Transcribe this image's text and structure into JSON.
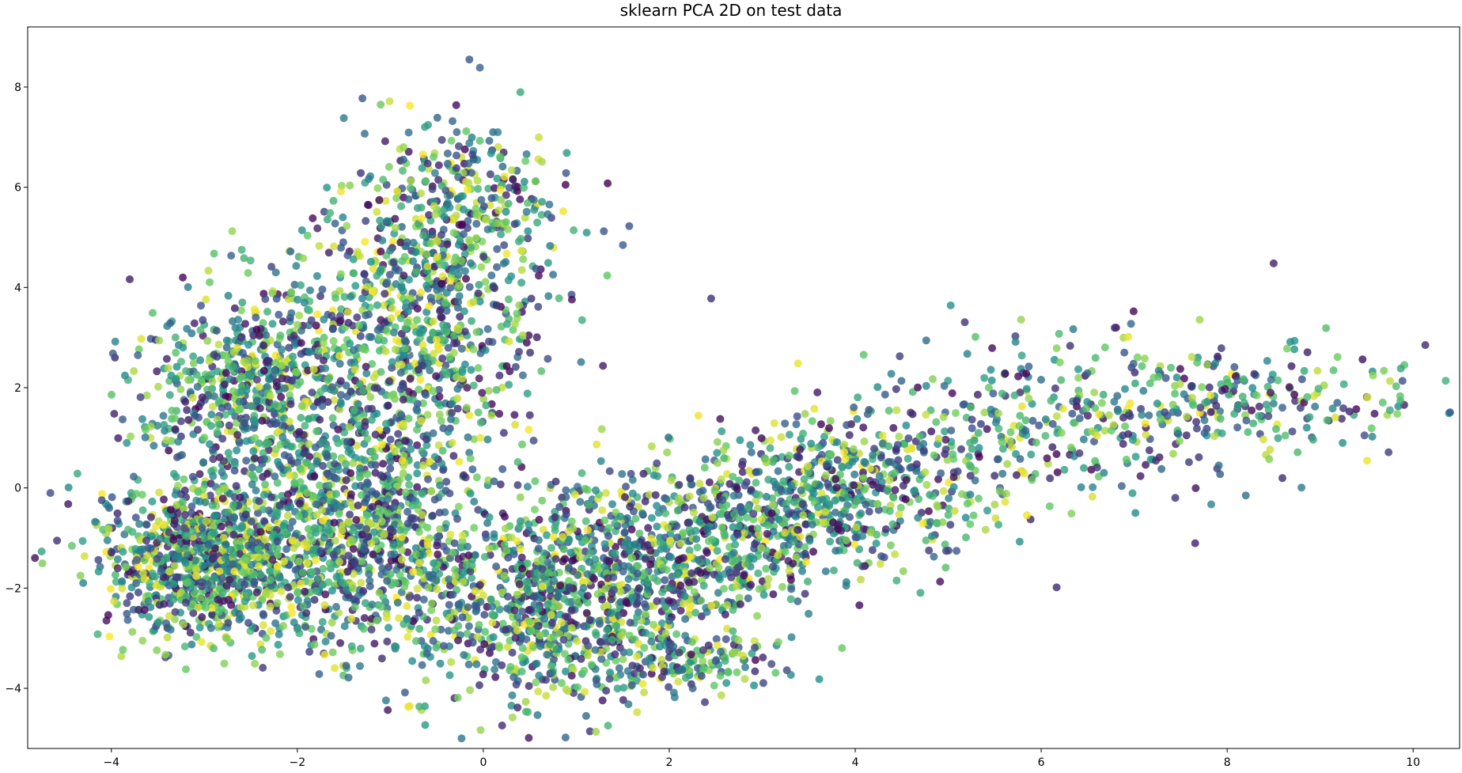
{
  "chart_data": {
    "type": "scatter",
    "title": "sklearn PCA 2D on test data",
    "xlabel": "",
    "ylabel": "",
    "xlim": [
      -4.9,
      10.5
    ],
    "ylim": [
      -5.2,
      9.2
    ],
    "xticks": [
      -4,
      -2,
      0,
      2,
      4,
      6,
      8,
      10
    ],
    "yticks": [
      -4,
      -2,
      0,
      2,
      4,
      6,
      8
    ],
    "grid": false,
    "legend": "none",
    "colormap": [
      "#440154",
      "#3b528b",
      "#21918c",
      "#5ec962",
      "#fde725"
    ],
    "marker_alpha": 0.8,
    "clusters": [
      {
        "cx": -3.0,
        "cy": -1.5,
        "sx": 0.6,
        "sy": 0.8,
        "n": 900
      },
      {
        "cx": -2.5,
        "cy": 2.0,
        "sx": 0.6,
        "sy": 1.0,
        "n": 600
      },
      {
        "cx": -1.4,
        "cy": -0.8,
        "sx": 0.7,
        "sy": 1.2,
        "n": 900
      },
      {
        "cx": -0.8,
        "cy": 3.0,
        "sx": 0.7,
        "sy": 1.4,
        "n": 700
      },
      {
        "cx": -0.2,
        "cy": 5.5,
        "sx": 0.6,
        "sy": 0.9,
        "n": 350
      },
      {
        "cx": 0.6,
        "cy": -2.5,
        "sx": 0.8,
        "sy": 1.0,
        "n": 700
      },
      {
        "cx": 1.8,
        "cy": -1.5,
        "sx": 0.9,
        "sy": 0.9,
        "n": 600
      },
      {
        "cx": 3.2,
        "cy": -0.5,
        "sx": 0.8,
        "sy": 0.7,
        "n": 450
      },
      {
        "cx": 4.3,
        "cy": 0.2,
        "sx": 0.8,
        "sy": 0.8,
        "n": 300
      },
      {
        "cx": 6.3,
        "cy": 1.4,
        "sx": 1.0,
        "sy": 0.9,
        "n": 280
      },
      {
        "cx": 8.3,
        "cy": 1.7,
        "sx": 0.9,
        "sy": 0.5,
        "n": 200
      },
      {
        "cx": 2.3,
        "cy": -3.5,
        "sx": 0.5,
        "sy": 0.3,
        "n": 120
      }
    ],
    "outliers": [
      {
        "x": -0.15,
        "y": 8.55,
        "v": 0.25
      },
      {
        "x": 8.5,
        "y": 4.48,
        "v": 0.1
      },
      {
        "x": 2.45,
        "y": 3.78,
        "v": 0.15
      },
      {
        "x": -1.5,
        "y": 7.38,
        "v": 0.4
      },
      {
        "x": 9.75,
        "y": 1.55,
        "v": 0.6
      },
      {
        "x": 8.2,
        "y": -0.15,
        "v": 0.35
      }
    ]
  }
}
